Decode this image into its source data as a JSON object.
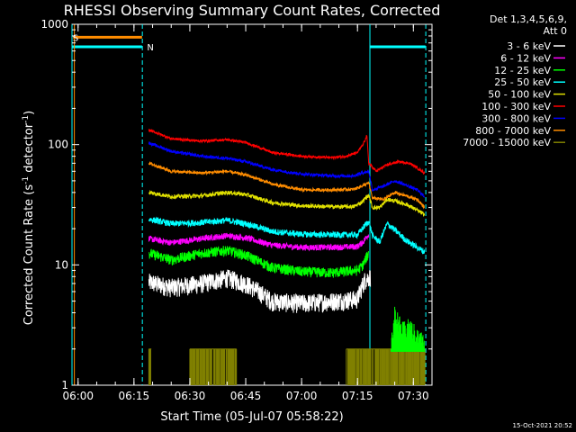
{
  "chart_data": {
    "type": "line",
    "title": "RHESSI Observing Summary Count Rates, Corrected",
    "xlabel": "Start Time (05-Jul-07 05:58:22)",
    "ylabel_main": "Corrected Count Rate (s",
    "ylabel_sup1": "-1",
    "ylabel_mid": " detector",
    "ylabel_sup2": "-1",
    "ylabel_end": ")",
    "yscale": "log",
    "xlim": [
      "05:58:22",
      "07:35:00"
    ],
    "ylim": [
      1,
      1000
    ],
    "x_ticks": [
      "06:00",
      "06:15",
      "06:30",
      "06:45",
      "07:00",
      "07:15",
      "07:30"
    ],
    "y_ticks": [
      {
        "label": "1",
        "value": 1
      },
      {
        "label": "10",
        "value": 10
      },
      {
        "label": "100",
        "value": 100
      },
      {
        "label": "1000",
        "value": 1000
      }
    ],
    "legend_header": [
      "Det 1,3,4,5,6,9,",
      "Att 0"
    ],
    "legend_position": "right",
    "timestamp": "15-Oct-2021 20:52",
    "annotations": [
      {
        "label": "S",
        "time": "05:58:35",
        "value": 780,
        "color": "#ff8c00"
      },
      {
        "label": "N",
        "time": "06:18:30",
        "value": 650,
        "color": "#00ffff"
      }
    ],
    "markers": [
      {
        "type": "s_line",
        "start": "05:58:40",
        "end": "06:17:10",
        "value": 780,
        "color": "#ff8c00"
      },
      {
        "type": "n_line",
        "start": "05:58:22",
        "end": "06:17:10",
        "value": 650,
        "color": "#00ffff"
      },
      {
        "type": "n_line",
        "start": "07:18:15",
        "end": "07:33:15",
        "value": 650,
        "color": "#00ffff"
      },
      {
        "type": "vline_solid",
        "time": "05:58:22",
        "color": "#00ffff"
      },
      {
        "type": "vline_solid",
        "time": "05:59:00",
        "color": "#ff8c00"
      },
      {
        "type": "vline_dashed",
        "time": "06:17:15",
        "color": "#00ffff"
      },
      {
        "type": "vline_solid",
        "time": "07:18:20",
        "color": "#00ffff"
      },
      {
        "type": "vline_dashed",
        "time": "07:33:20",
        "color": "#00ffff"
      }
    ],
    "series": [
      {
        "name": "3 - 6 keV",
        "color": "#ffffff",
        "noise": 0.18,
        "points": [
          [
            "06:19:00",
            7.2
          ],
          [
            "06:25:00",
            6.5
          ],
          [
            "06:33:00",
            7.0
          ],
          [
            "06:40:00",
            7.8
          ],
          [
            "06:45:00",
            7.0
          ],
          [
            "06:52:00",
            5.0
          ],
          [
            "07:00:00",
            4.8
          ],
          [
            "07:08:00",
            5.0
          ],
          [
            "07:15:00",
            5.2
          ],
          [
            "07:17:00",
            7.5
          ],
          [
            "07:18:30",
            8.0
          ]
        ]
      },
      {
        "name": "6 - 12 keV",
        "color": "#ff00ff",
        "noise": 0.06,
        "points": [
          [
            "06:19:00",
            16.5
          ],
          [
            "06:25:00",
            15.3
          ],
          [
            "06:33:00",
            16.5
          ],
          [
            "06:40:00",
            17.5
          ],
          [
            "06:45:00",
            16.8
          ],
          [
            "06:52:00",
            14.6
          ],
          [
            "07:00:00",
            14.0
          ],
          [
            "07:08:00",
            14.0
          ],
          [
            "07:15:00",
            14.2
          ],
          [
            "07:16:30",
            15.5
          ],
          [
            "07:18:00",
            18.0
          ]
        ]
      },
      {
        "name": "12 - 25 keV",
        "color": "#00ff00",
        "noise": 0.1,
        "points": [
          [
            "06:19:00",
            12.5
          ],
          [
            "06:25:00",
            11.0
          ],
          [
            "06:33:00",
            12.5
          ],
          [
            "06:40:00",
            13.2
          ],
          [
            "06:45:00",
            12.0
          ],
          [
            "06:52:00",
            9.5
          ],
          [
            "07:00:00",
            8.8
          ],
          [
            "07:08:00",
            8.6
          ],
          [
            "07:15:00",
            9.0
          ],
          [
            "07:16:30",
            10.0
          ],
          [
            "07:18:00",
            12.5
          ]
        ]
      },
      {
        "name": "25 - 50 keV",
        "color": "#00ffff",
        "noise": 0.06,
        "points": [
          [
            "06:19:00",
            24.0
          ],
          [
            "06:25:00",
            22.0
          ],
          [
            "06:33:00",
            22.5
          ],
          [
            "06:40:00",
            23.5
          ],
          [
            "06:45:00",
            22.0
          ],
          [
            "06:52:00",
            19.0
          ],
          [
            "07:00:00",
            18.0
          ],
          [
            "07:08:00",
            17.8
          ],
          [
            "07:15:00",
            17.8
          ],
          [
            "07:16:00",
            19.5
          ],
          [
            "07:18:00",
            23.0
          ],
          [
            "07:19:00",
            17.5
          ],
          [
            "07:21:00",
            15.5
          ],
          [
            "07:23:00",
            22.0
          ],
          [
            "07:25:00",
            19.5
          ],
          [
            "07:28:00",
            16.0
          ],
          [
            "07:31:00",
            14.0
          ],
          [
            "07:33:00",
            12.8
          ]
        ]
      },
      {
        "name": "50 - 100 keV",
        "color": "#e0e000",
        "noise": 0.04,
        "points": [
          [
            "06:19:00",
            40.0
          ],
          [
            "06:25:00",
            37.0
          ],
          [
            "06:33:00",
            37.5
          ],
          [
            "06:40:00",
            40.0
          ],
          [
            "06:45:00",
            38.5
          ],
          [
            "06:52:00",
            33.0
          ],
          [
            "07:00:00",
            31.0
          ],
          [
            "07:08:00",
            30.5
          ],
          [
            "07:14:00",
            30.5
          ],
          [
            "07:16:00",
            33.0
          ],
          [
            "07:18:00",
            38.0
          ],
          [
            "07:19:00",
            30.0
          ],
          [
            "07:21:00",
            30.0
          ],
          [
            "07:23:00",
            35.0
          ],
          [
            "07:25:00",
            34.0
          ],
          [
            "07:28:00",
            32.0
          ],
          [
            "07:31:00",
            28.5
          ],
          [
            "07:33:00",
            26.0
          ]
        ]
      },
      {
        "name": "100 - 300 keV",
        "color": "#ff0000",
        "noise": 0.025,
        "points": [
          [
            "06:19:00",
            132.0
          ],
          [
            "06:25:00",
            112.0
          ],
          [
            "06:33:00",
            107.0
          ],
          [
            "06:40:00",
            110.0
          ],
          [
            "06:45:00",
            104.0
          ],
          [
            "06:52:00",
            86.0
          ],
          [
            "07:00:00",
            80.0
          ],
          [
            "07:08:00",
            78.0
          ],
          [
            "07:12:00",
            80.0
          ],
          [
            "07:15:00",
            86.0
          ],
          [
            "07:16:30",
            100.0
          ],
          [
            "07:17:30",
            118.0
          ],
          [
            "07:18:00",
            70.0
          ],
          [
            "07:20:00",
            60.0
          ],
          [
            "07:23:00",
            68.0
          ],
          [
            "07:26:00",
            72.0
          ],
          [
            "07:29:00",
            70.0
          ],
          [
            "07:33:00",
            58.0
          ]
        ]
      },
      {
        "name": "300 - 800 keV",
        "color": "#0000ff",
        "noise": 0.03,
        "points": [
          [
            "06:19:00",
            103.0
          ],
          [
            "06:25:00",
            88.0
          ],
          [
            "06:33:00",
            80.0
          ],
          [
            "06:40:00",
            77.0
          ],
          [
            "06:45:00",
            72.0
          ],
          [
            "06:52:00",
            62.0
          ],
          [
            "07:00:00",
            57.0
          ],
          [
            "07:08:00",
            55.0
          ],
          [
            "07:14:00",
            55.0
          ],
          [
            "07:16:00",
            58.0
          ],
          [
            "07:18:00",
            60.0
          ],
          [
            "07:19:00",
            42.0
          ],
          [
            "07:22:00",
            45.0
          ],
          [
            "07:25:00",
            50.0
          ],
          [
            "07:28:00",
            46.0
          ],
          [
            "07:31:00",
            42.0
          ],
          [
            "07:33:00",
            37.0
          ]
        ]
      },
      {
        "name": "800 - 7000 keV",
        "color": "#ff8c00",
        "noise": 0.03,
        "points": [
          [
            "06:19:00",
            70.0
          ],
          [
            "06:25:00",
            60.0
          ],
          [
            "06:33:00",
            58.0
          ],
          [
            "06:40:00",
            60.0
          ],
          [
            "06:45:00",
            56.0
          ],
          [
            "06:52:00",
            47.0
          ],
          [
            "07:00:00",
            42.0
          ],
          [
            "07:08:00",
            42.0
          ],
          [
            "07:14:00",
            42.5
          ],
          [
            "07:16:00",
            45.0
          ],
          [
            "07:18:00",
            48.0
          ],
          [
            "07:19:00",
            36.0
          ],
          [
            "07:22:00",
            35.0
          ],
          [
            "07:25:00",
            40.0
          ],
          [
            "07:28:00",
            37.5
          ],
          [
            "07:31:00",
            35.0
          ],
          [
            "07:33:00",
            30.0
          ]
        ]
      },
      {
        "name": "7000 - 15000 keV",
        "color": "#808000",
        "noise": 0,
        "points": [
          [
            "06:19:00",
            1.0
          ],
          [
            "06:19:30",
            2.0
          ],
          [
            "06:20:00",
            1.0
          ],
          [
            "06:30:00",
            1.0
          ],
          [
            "06:30:30",
            2.0
          ],
          [
            "06:42:00",
            2.0
          ],
          [
            "06:42:30",
            1.0
          ],
          [
            "07:12:00",
            1.0
          ],
          [
            "07:12:30",
            2.0
          ],
          [
            "07:33:00",
            2.0
          ],
          [
            "07:33:10",
            1.0
          ]
        ]
      }
    ],
    "extra_traces": [
      {
        "color": "#00ff00",
        "points": [
          [
            "07:24:00",
            1.8
          ],
          [
            "07:25:00",
            3.8
          ],
          [
            "07:27:00",
            2.8
          ],
          [
            "07:29:00",
            3.0
          ],
          [
            "07:31:00",
            2.5
          ],
          [
            "07:33:00",
            2.2
          ]
        ]
      }
    ]
  }
}
